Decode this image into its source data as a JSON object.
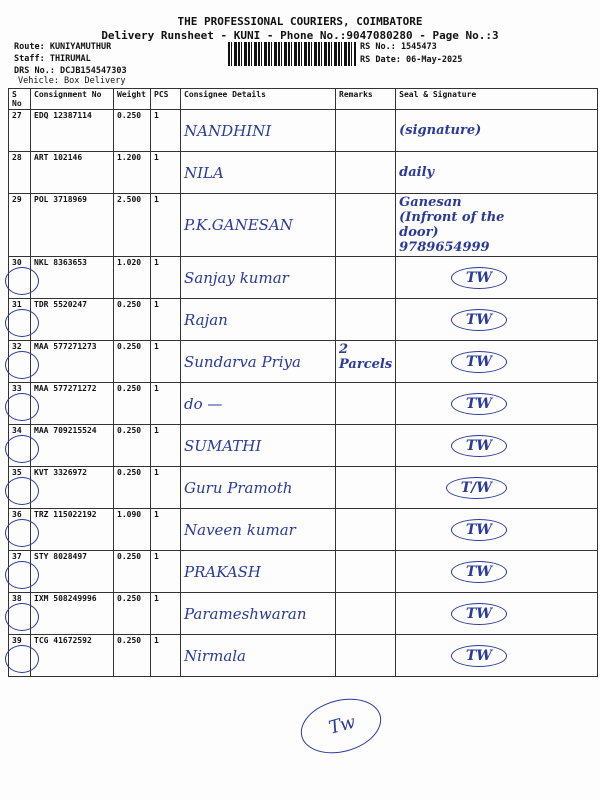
{
  "header": {
    "company": "THE PROFESSIONAL COURIERS, COIMBATORE",
    "subtitle": "Delivery Runsheet - KUNI - Phone No.:9047080280 - Page No.:3",
    "route": "Route: KUNIYAMUTHUR",
    "staff": "Staff: THIRUMAL",
    "drs_no": "DRS No.: DCJB154547303",
    "vehicle": "Vehicle: Box Delivery",
    "rs_no": "RS No.: 1545473",
    "rs_date": "RS Date: 06-May-2025"
  },
  "columns": [
    "S No",
    "Consignment No",
    "Weight",
    "PCS",
    "Consignee Details",
    "Remarks",
    "Seal & Signature"
  ],
  "rows": [
    {
      "sno": "27",
      "cn": "EDQ 12387114",
      "weight": "0.250",
      "pcs": "1",
      "consignee": "NANDHINI",
      "remarks": "",
      "signature": "(signature)",
      "stamp": false
    },
    {
      "sno": "28",
      "cn": "ART 102146",
      "weight": "1.200",
      "pcs": "1",
      "consignee": "NILA",
      "remarks": "",
      "signature": "daily",
      "stamp": false
    },
    {
      "sno": "29",
      "cn": "POL 3718969",
      "weight": "2.500",
      "pcs": "1",
      "consignee": "P.K.GANESAN",
      "remarks": "",
      "signature": "Ganesan (Infront of the door) 9789654999",
      "stamp": false
    },
    {
      "sno": "30",
      "cn": "NKL 8363653",
      "weight": "1.020",
      "pcs": "1",
      "consignee": "Sanjay kumar",
      "remarks": "",
      "signature": "TW",
      "stamp": true
    },
    {
      "sno": "31",
      "cn": "TDR 5520247",
      "weight": "0.250",
      "pcs": "1",
      "consignee": "Rajan",
      "remarks": "",
      "signature": "TW",
      "stamp": true
    },
    {
      "sno": "32",
      "cn": "MAA 577271273",
      "weight": "0.250",
      "pcs": "1",
      "consignee": "Sundarva Priya",
      "remarks": "2 Parcels",
      "signature": "TW",
      "stamp": true
    },
    {
      "sno": "33",
      "cn": "MAA 577271272",
      "weight": "0.250",
      "pcs": "1",
      "consignee": "do —",
      "remarks": "",
      "signature": "TW",
      "stamp": true
    },
    {
      "sno": "34",
      "cn": "MAA 709215524",
      "weight": "0.250",
      "pcs": "1",
      "consignee": "SUMATHI",
      "remarks": "",
      "signature": "TW",
      "stamp": true
    },
    {
      "sno": "35",
      "cn": "KVT 3326972",
      "weight": "0.250",
      "pcs": "1",
      "consignee": "Guru Pramoth",
      "remarks": "",
      "signature": "T/W",
      "stamp": true
    },
    {
      "sno": "36",
      "cn": "TRZ 115022192",
      "weight": "1.090",
      "pcs": "1",
      "consignee": "Naveen kumar",
      "remarks": "",
      "signature": "TW",
      "stamp": true
    },
    {
      "sno": "37",
      "cn": "STY 8028497",
      "weight": "0.250",
      "pcs": "1",
      "consignee": "PRAKASH",
      "remarks": "",
      "signature": "TW",
      "stamp": true
    },
    {
      "sno": "38",
      "cn": "IXM 508249996",
      "weight": "0.250",
      "pcs": "1",
      "consignee": "Parameshwaran",
      "remarks": "",
      "signature": "TW",
      "stamp": true
    },
    {
      "sno": "39",
      "cn": "TCG 41672592",
      "weight": "0.250",
      "pcs": "1",
      "consignee": "Nirmala",
      "remarks": "",
      "signature": "TW",
      "stamp": true
    }
  ],
  "footer_stamp": "Tw"
}
